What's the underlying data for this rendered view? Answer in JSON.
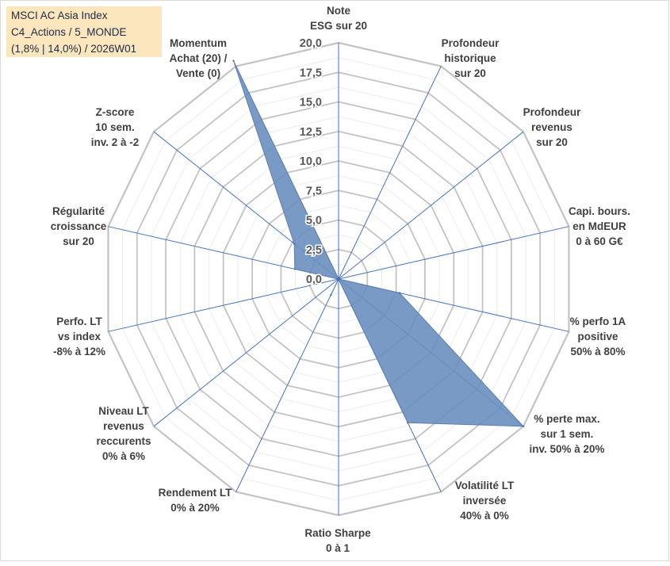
{
  "info_box": {
    "line1": "MSCI AC Asia Index",
    "line2": "C4_Actions / 5_MONDE",
    "line3": "(1,8% | 14,0%) / 2026W01"
  },
  "chart_data": {
    "type": "radar",
    "title": "MSCI AC Asia Index",
    "rmax": 20,
    "ring_step": 2.5,
    "ring_labels": [
      "0,0",
      "2,5",
      "5,0",
      "7,5",
      "10,0",
      "12,5",
      "15,0",
      "17,5",
      "20,0"
    ],
    "categories": [
      [
        "Note",
        "ESG sur 20"
      ],
      [
        "Profondeur",
        "historique",
        "sur 20"
      ],
      [
        "Profondeur",
        "revenus",
        "sur 20"
      ],
      [
        "Capi. bours.",
        "en MdEUR",
        "0 à 60 G€"
      ],
      [
        "% perfo 1A",
        "positive",
        "50% à 80%"
      ],
      [
        "% perte max.",
        "sur 1 sem.",
        "inv. 50% à 20%"
      ],
      [
        "Volatilité LT",
        "inversée",
        "40% à 0%"
      ],
      [
        "Ratio Sharpe",
        "0 à 1"
      ],
      [
        "Rendement LT",
        "0% à 20%"
      ],
      [
        "Niveau LT",
        "revenus",
        "reccurents",
        "0% à 6%"
      ],
      [
        "Perfo. LT",
        "vs index",
        "-8% à 12%"
      ],
      [
        "Régularité",
        "croissance",
        "sur 20"
      ],
      [
        "Z-score",
        "10 sem.",
        "inv. 2 à -2"
      ],
      [
        "Momentum",
        "Achat (20) /",
        "Vente (0)"
      ]
    ],
    "series": [
      {
        "name": "MSCI AC Asia Index",
        "values": [
          0,
          0,
          0,
          0,
          5.3,
          20,
          13.5,
          0,
          1.5,
          0,
          0,
          3.8,
          4.8,
          20.5
        ],
        "color": "#6a8fbf"
      }
    ]
  }
}
